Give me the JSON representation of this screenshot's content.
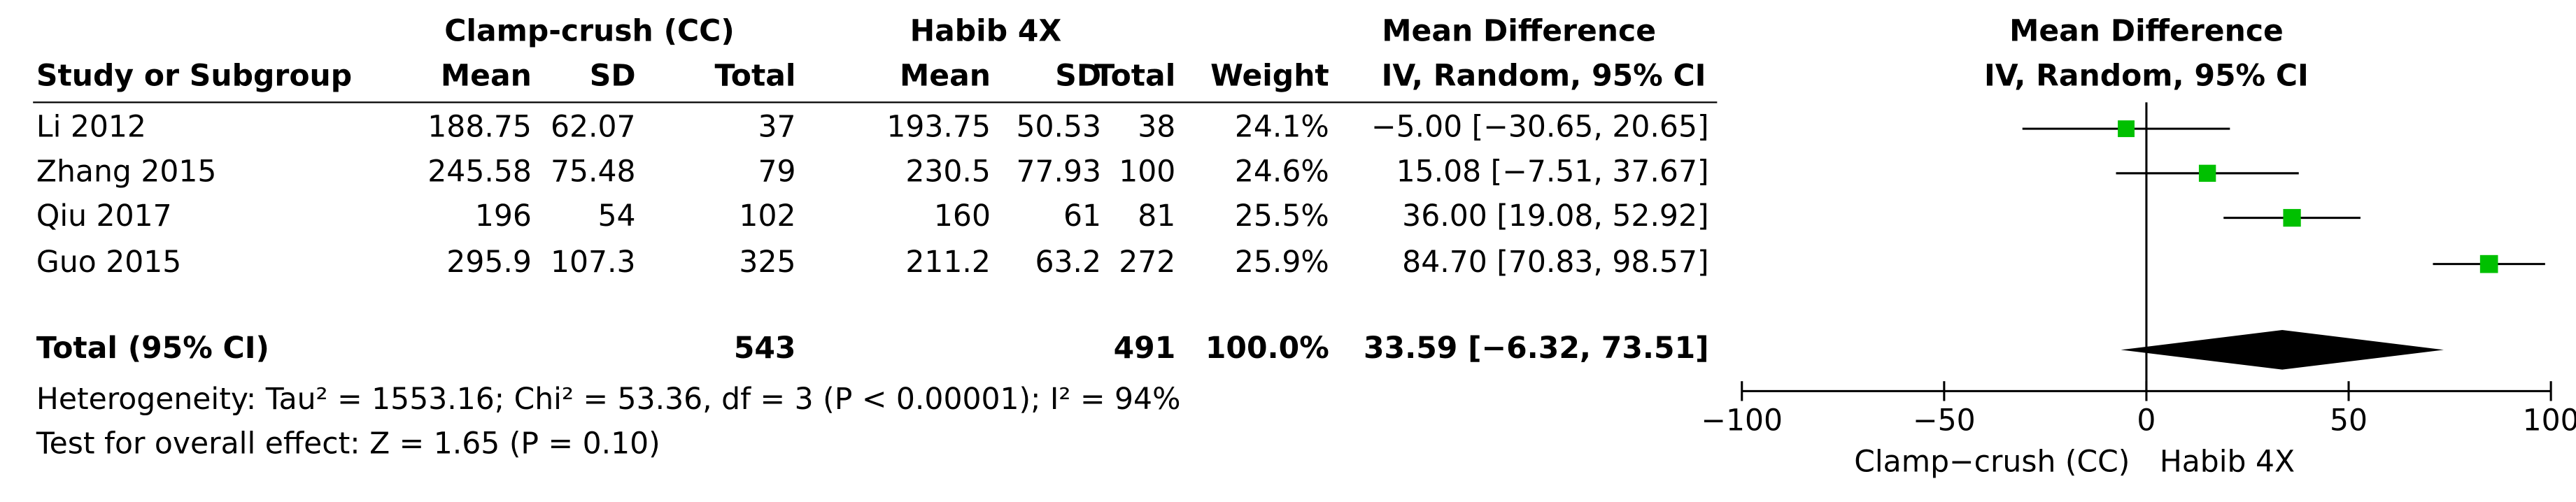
{
  "chart_data": {
    "type": "forest",
    "group_headers": [
      "Clamp-crush (CC)",
      "Habib 4X"
    ],
    "column_headers": [
      "Study or Subgroup",
      "Mean",
      "SD",
      "Total",
      "Mean",
      "SD",
      "Total",
      "Weight"
    ],
    "md_header": [
      "Mean Difference",
      "IV, Random, 95% CI"
    ],
    "plot_header": [
      "Mean Difference",
      "IV, Random, 95% CI"
    ],
    "categories": [
      "Li 2012",
      "Zhang 2015",
      "Qiu 2017",
      "Guo 2015"
    ],
    "cc": {
      "mean": [
        188.75,
        245.58,
        196,
        295.9
      ],
      "sd": [
        62.07,
        75.48,
        54,
        107.3
      ],
      "total": [
        37,
        79,
        102,
        325
      ]
    },
    "habib": {
      "mean": [
        193.75,
        230.5,
        160,
        211.2
      ],
      "sd": [
        50.53,
        77.93,
        61,
        63.2
      ],
      "total": [
        38,
        100,
        81,
        272
      ]
    },
    "weight": {
      "values": [
        24.1,
        24.6,
        25.5,
        25.9
      ],
      "labels": [
        "24.1%",
        "24.6%",
        "25.5%",
        "25.9%"
      ]
    },
    "md": {
      "values": [
        -5.0,
        15.08,
        36.0,
        84.7
      ],
      "lower": [
        -30.65,
        -7.51,
        19.08,
        70.83
      ],
      "upper": [
        20.65,
        37.67,
        52.92,
        98.57
      ],
      "labels": [
        "−5.00 [−30.65, 20.65]",
        "15.08 [−7.51, 37.67]",
        "36.00 [19.08, 52.92]",
        "84.70 [70.83, 98.57]"
      ]
    },
    "total": {
      "label": "Total (95% CI)",
      "cc_total": 543,
      "habib_total": 491,
      "weight": 100,
      "weight_label": "100.0%",
      "md": 33.59,
      "lower": -6.32,
      "upper": 73.51,
      "md_label": "33.59 [−6.32, 73.51]"
    },
    "heterogeneity": "Heterogeneity: Tau² = 1553.16; Chi² = 53.36, df = 3 (P < 0.00001); I² = 94%",
    "overall_effect": "Test for overall effect: Z = 1.65 (P = 0.10)",
    "xlim": [
      -100,
      100
    ],
    "xticks": [
      {
        "value": -100,
        "label": "−100"
      },
      {
        "value": -50,
        "label": "−50"
      },
      0,
      50,
      100
    ],
    "xlabel_left": "Clamp−crush (CC)",
    "xlabel_right": "Habib 4X",
    "color": "#00c000"
  }
}
